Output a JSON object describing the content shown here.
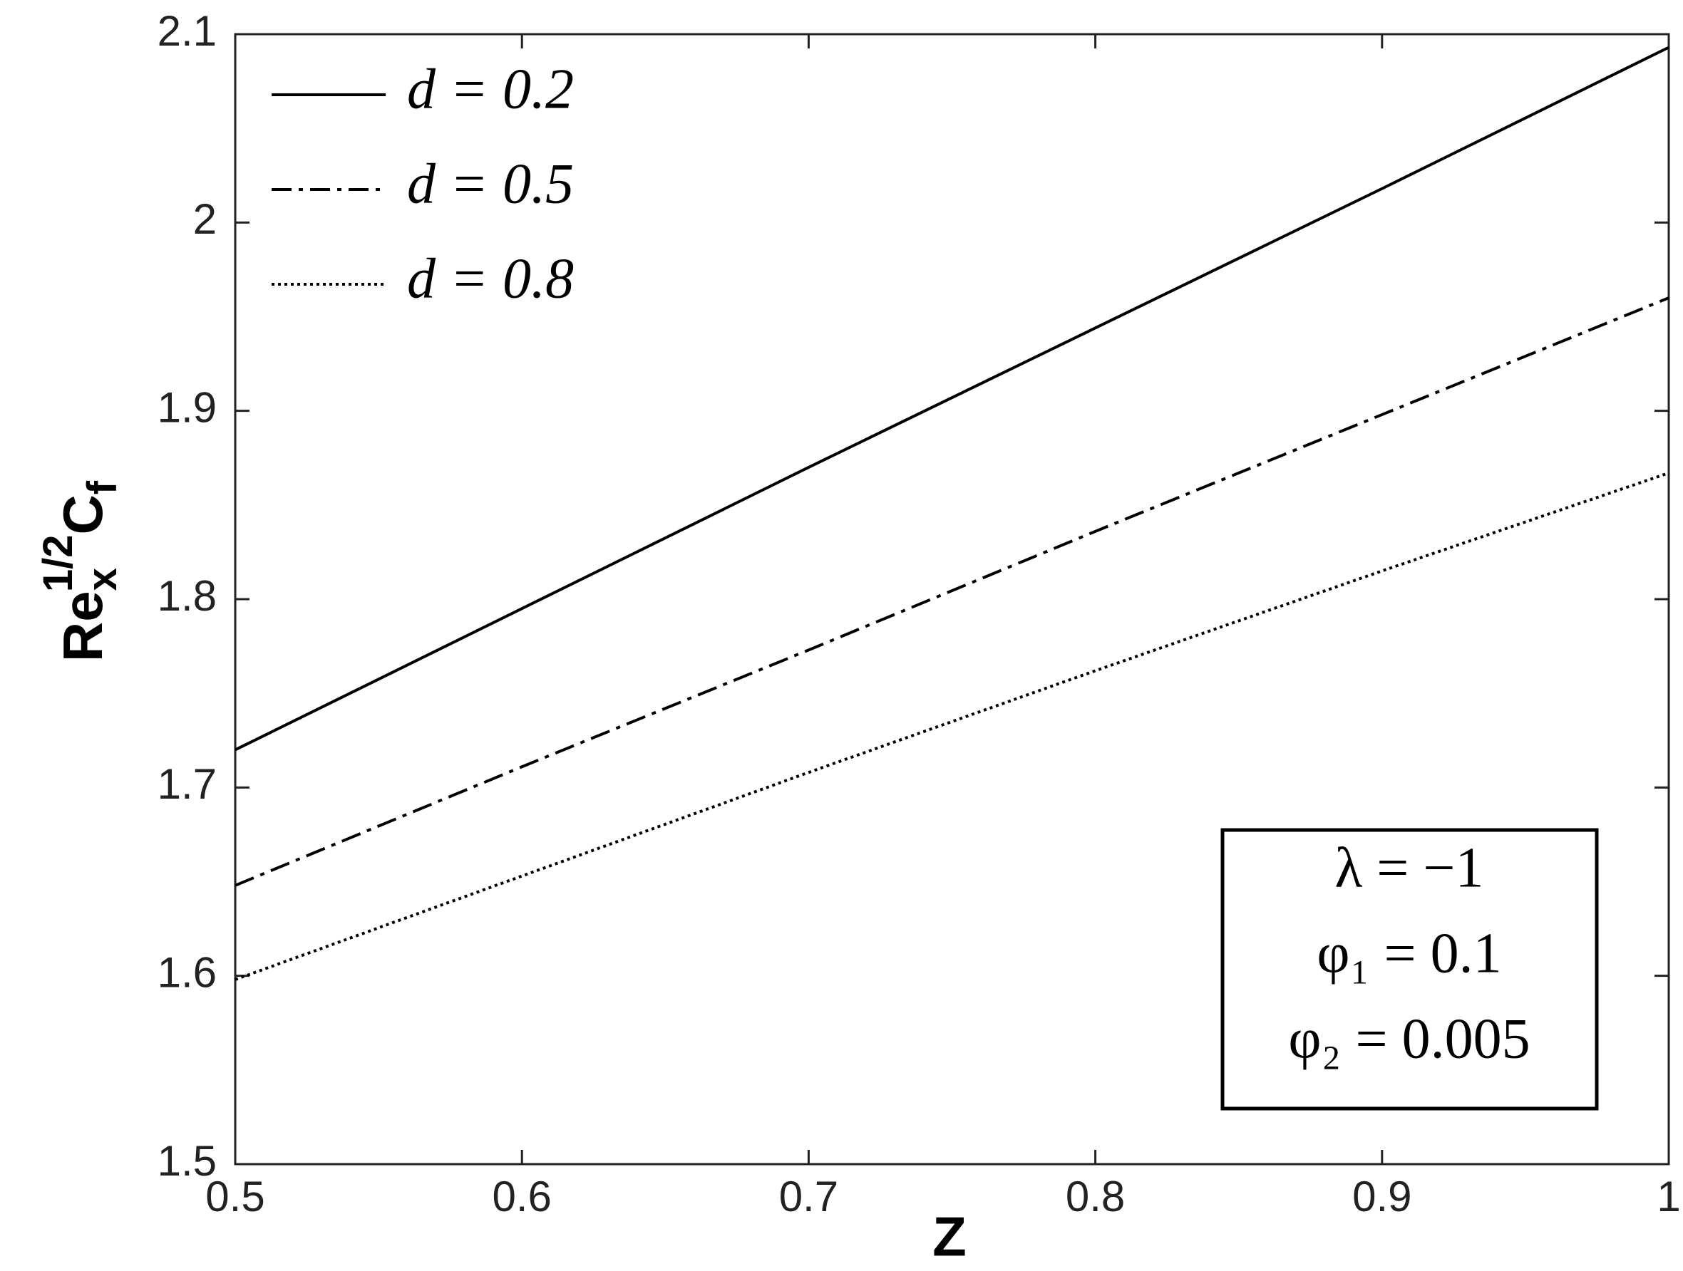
{
  "chart_data": {
    "type": "line",
    "xlabel": "Z",
    "ylabel": [
      "Re",
      "x",
      "1/2",
      "C",
      "f"
    ],
    "x": [
      0.5,
      0.6,
      0.7,
      0.8,
      0.9,
      1
    ],
    "series": [
      {
        "name": "d = 0.2",
        "color": "#000000",
        "dash": "solid",
        "values": [
          1.72,
          1.795,
          1.87,
          1.944,
          2.018,
          2.093
        ]
      },
      {
        "name": "d = 0.5",
        "color": "#000000",
        "dash": "dashdot",
        "values": [
          1.648,
          1.711,
          1.773,
          1.836,
          1.898,
          1.96
        ]
      },
      {
        "name": "d = 0.8",
        "color": "#000000",
        "dash": "dotted",
        "values": [
          1.598,
          1.653,
          1.708,
          1.762,
          1.815,
          1.867
        ]
      }
    ],
    "xlim": [
      0.5,
      1
    ],
    "ylim": [
      1.5,
      2.1
    ],
    "xticks": [
      0.5,
      0.6,
      0.7,
      0.8,
      0.9,
      1
    ],
    "yticks": [
      1.5,
      1.6,
      1.7,
      1.8,
      1.9,
      2,
      2.1
    ],
    "legend": "upper-left",
    "annotation": [
      "λ = −1",
      "φ₁ = 0.1",
      "φ₂ = 0.005"
    ]
  }
}
